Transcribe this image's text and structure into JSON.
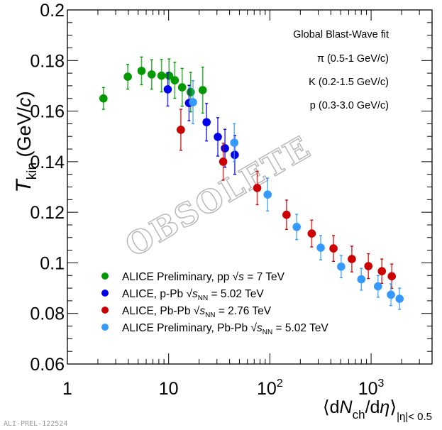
{
  "chart_data": {
    "type": "scatter",
    "title": "",
    "xlabel": "⟨dNch/dη⟩ |η|< 0.5",
    "xlabel_parts": {
      "open": "⟨d",
      "N": "N",
      "ch": "ch",
      "mid": "/d",
      "eta": "η",
      "close": "⟩",
      "sub": "|η|< 0.5"
    },
    "ylabel": "T_kin (GeV/c)",
    "ylabel_parts": {
      "T": "T",
      "kin": "kin",
      "unit_open": " (GeV/",
      "c": "c",
      "unit_close": ")"
    },
    "xscale": "log",
    "xlim": [
      1,
      4000
    ],
    "ylim": [
      0.06,
      0.2
    ],
    "x_ticks": [
      {
        "value": 1,
        "label": "1",
        "exp": ""
      },
      {
        "value": 10,
        "label": "10",
        "exp": ""
      },
      {
        "value": 100,
        "label": "10",
        "exp": "2"
      },
      {
        "value": 1000,
        "label": "10",
        "exp": "3"
      }
    ],
    "y_ticks": [
      {
        "value": 0.06,
        "label": "0.06"
      },
      {
        "value": 0.08,
        "label": "0.08"
      },
      {
        "value": 0.1,
        "label": "0.1"
      },
      {
        "value": 0.12,
        "label": "0.12"
      },
      {
        "value": 0.14,
        "label": "0.14"
      },
      {
        "value": 0.16,
        "label": "0.16"
      },
      {
        "value": 0.18,
        "label": "0.18"
      },
      {
        "value": 0.2,
        "label": "0.2"
      }
    ],
    "grid": false,
    "legend_position": "bottom-left",
    "annotations": [
      "Global Blast-Wave fit",
      "π (0.5-1 GeV/c)",
      "K (0.2-1.5 GeV/c)",
      "p (0.3-3.0 GeV/c)"
    ],
    "watermark": "OBSOLETE",
    "series": [
      {
        "name": "ALICE Preliminary, pp √s = 7 TeV",
        "legend": {
          "pre": "ALICE Preliminary, pp ",
          "sym": "s",
          "sub": "",
          "post": " = 7 TeV"
        },
        "color": "#009900",
        "points": [
          {
            "x": 2.27,
            "y": 0.165,
            "err": 0.0043
          },
          {
            "x": 3.95,
            "y": 0.1736,
            "err": 0.0049
          },
          {
            "x": 5.4,
            "y": 0.1759,
            "err": 0.0055
          },
          {
            "x": 6.8,
            "y": 0.1745,
            "err": 0.0058
          },
          {
            "x": 8.5,
            "y": 0.174,
            "err": 0.0064
          },
          {
            "x": 10.1,
            "y": 0.174,
            "err": 0.0066
          },
          {
            "x": 11.5,
            "y": 0.1722,
            "err": 0.0071
          },
          {
            "x": 13.6,
            "y": 0.1694,
            "err": 0.0075
          },
          {
            "x": 16.5,
            "y": 0.1675,
            "err": 0.0078
          },
          {
            "x": 21.7,
            "y": 0.1683,
            "err": 0.0091
          }
        ]
      },
      {
        "name": "ALICE, p-Pb √sNN = 5.02 TeV",
        "legend": {
          "pre": "ALICE, p-Pb ",
          "sym": "s",
          "sub": "NN",
          "post": " = 5.02 TeV"
        },
        "color": "#0000ee",
        "points": [
          {
            "x": 9.8,
            "y": 0.1686,
            "err": 0.0066
          },
          {
            "x": 15.9,
            "y": 0.1632,
            "err": 0.007
          },
          {
            "x": 23.7,
            "y": 0.1556,
            "err": 0.0074
          },
          {
            "x": 30.6,
            "y": 0.1498,
            "err": 0.0076
          },
          {
            "x": 36.0,
            "y": 0.1453,
            "err": 0.0075
          },
          {
            "x": 45.0,
            "y": 0.1427,
            "err": 0.0077
          }
        ]
      },
      {
        "name": "ALICE, Pb-Pb √sNN = 2.76 TeV",
        "legend": {
          "pre": "ALICE, Pb-Pb ",
          "sym": "s",
          "sub": "NN",
          "post": " = 2.76 TeV"
        },
        "color": "#cc0000",
        "points": [
          {
            "x": 13.2,
            "y": 0.1526,
            "xerr": 0.08,
            "err": 0.0081
          },
          {
            "x": 34.6,
            "y": 0.14,
            "err": 0.0073
          },
          {
            "x": 75.0,
            "y": 0.1296,
            "err": 0.0066
          },
          {
            "x": 146,
            "y": 0.119,
            "err": 0.0058
          },
          {
            "x": 259,
            "y": 0.1116,
            "err": 0.0053
          },
          {
            "x": 425,
            "y": 0.1057,
            "err": 0.0051
          },
          {
            "x": 645,
            "y": 0.1015,
            "err": 0.0051
          },
          {
            "x": 940,
            "y": 0.0987,
            "err": 0.0049
          },
          {
            "x": 1277,
            "y": 0.0967,
            "err": 0.0048
          },
          {
            "x": 1600,
            "y": 0.0947,
            "err": 0.0048
          }
        ]
      },
      {
        "name": "ALICE Preliminary, Pb-Pb √sNN = 5.02 TeV",
        "legend": {
          "pre": "ALICE Preliminary, Pb-Pb ",
          "sym": "s",
          "sub": "NN",
          "post": " = 5.02 TeV"
        },
        "color": "#3399ff",
        "points": [
          {
            "x": 17.4,
            "y": 0.1635,
            "err": 0.0085
          },
          {
            "x": 44.5,
            "y": 0.1475,
            "err": 0.0075
          },
          {
            "x": 95,
            "y": 0.127,
            "err": 0.0065
          },
          {
            "x": 184,
            "y": 0.1142,
            "err": 0.005
          },
          {
            "x": 318,
            "y": 0.106,
            "err": 0.0048
          },
          {
            "x": 506,
            "y": 0.0985,
            "err": 0.0044
          },
          {
            "x": 800,
            "y": 0.0935,
            "err": 0.0043
          },
          {
            "x": 1170,
            "y": 0.0907,
            "err": 0.0043
          },
          {
            "x": 1570,
            "y": 0.0874,
            "err": 0.0043
          },
          {
            "x": 1910,
            "y": 0.0858,
            "err": 0.0042
          }
        ]
      }
    ]
  },
  "footer": {
    "figure_id": "ALI-PREL-122524"
  }
}
